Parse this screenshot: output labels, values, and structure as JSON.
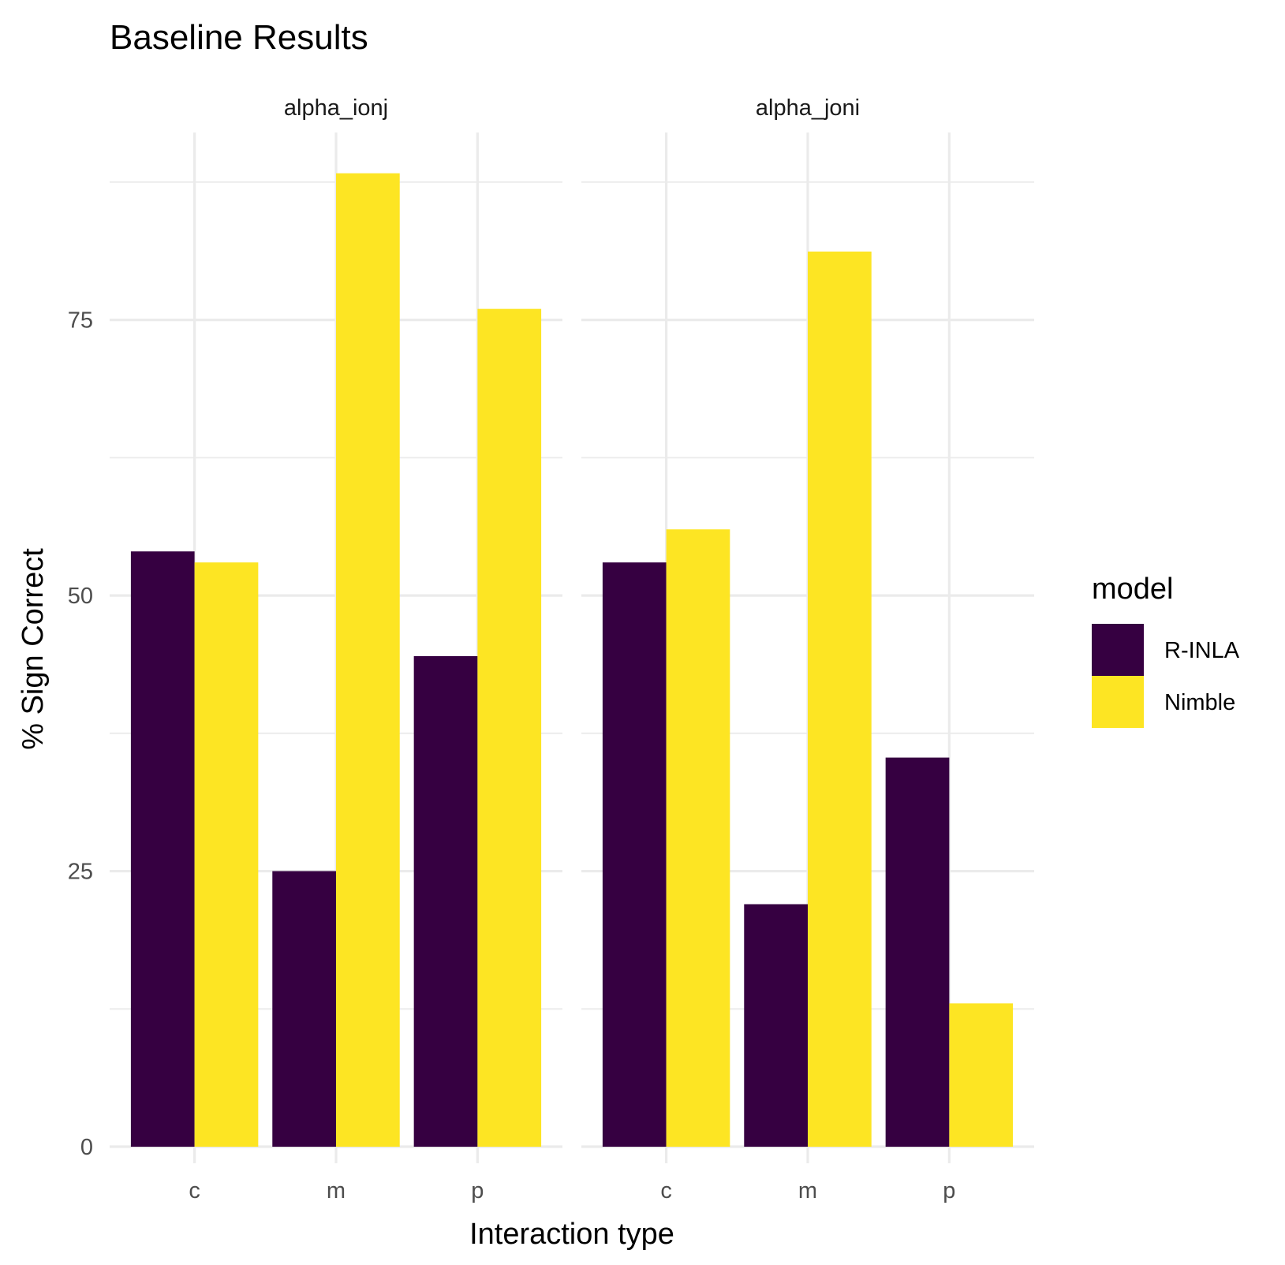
{
  "chart_data": {
    "type": "bar",
    "title": "Baseline Results",
    "xlabel": "Interaction type",
    "ylabel": "% Sign Correct",
    "ylim": [
      -1.5,
      92
    ],
    "yticks": [
      0,
      25,
      50,
      75
    ],
    "grid": true,
    "categories": [
      "c",
      "m",
      "p"
    ],
    "legend": {
      "title": "model",
      "placement": "right"
    },
    "series": [
      {
        "name": "R-INLA",
        "color": "#360041"
      },
      {
        "name": "Nimble",
        "color": "#FDE523"
      }
    ],
    "facets": [
      {
        "label": "alpha_ionj",
        "values": {
          "R-INLA": [
            54,
            25,
            44.5
          ],
          "Nimble": [
            53,
            88.3,
            76
          ]
        }
      },
      {
        "label": "alpha_joni",
        "values": {
          "R-INLA": [
            53,
            22,
            35.3
          ],
          "Nimble": [
            56,
            81.2,
            13
          ]
        }
      }
    ]
  }
}
